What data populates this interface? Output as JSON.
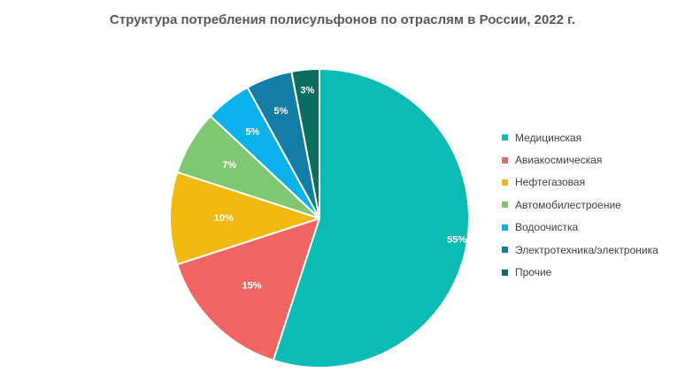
{
  "chart_data": {
    "type": "pie",
    "title": "Структура потребления полисульфонов по отраслям в России, 2022 г.",
    "categories": [
      "Медицинская",
      "Авиакосмическая",
      "Нефтегазовая",
      "Автомобилестроение",
      "Водоочистка",
      "Электротехника/электроника",
      "Прочие"
    ],
    "values": [
      55,
      15,
      10,
      7,
      5,
      5,
      3
    ],
    "value_labels": [
      "55%",
      "15%",
      "10%",
      "7%",
      "5%",
      "5%",
      "3%"
    ],
    "colors": [
      "#0bbbb5",
      "#f06461",
      "#f2b90f",
      "#7fc771",
      "#0ab1ea",
      "#137da5",
      "#0b6d60"
    ],
    "legend_position": "right",
    "start_angle": "12 o'clock",
    "direction": "clockwise"
  }
}
